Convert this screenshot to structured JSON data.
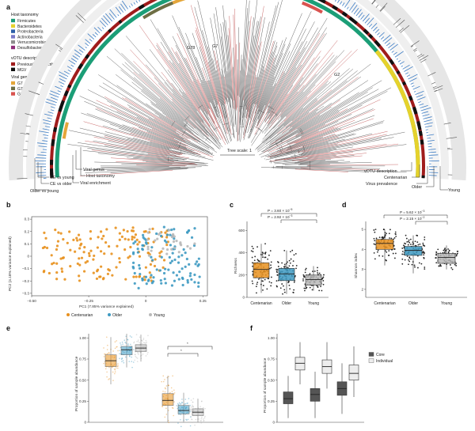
{
  "panel_labels": {
    "a": "a",
    "b": "b",
    "c": "c",
    "d": "d",
    "e": "e",
    "f": "f"
  },
  "colors": {
    "centenarian": "#E8911E",
    "older": "#3E9AC2",
    "young": "#B9B9B9",
    "firmicutes": "#1B9E77",
    "bacteroidetes": "#E6D22C",
    "proteobacteria": "#2C5FA8",
    "actinobacteria": "#7B7BC8",
    "verrucomicrobia": "#8E8E8E",
    "desulfobacterota": "#8F2E7A",
    "previously_undescribed": "#A01C1C",
    "mgv": "#111111",
    "g7": "#E4A63A",
    "g78": "#6E6E45",
    "g2": "#D9534F",
    "core": "#555555",
    "individual": "#EDEDED"
  },
  "panel_a": {
    "legend": {
      "host_taxonomy": {
        "title": "Host taxonomy",
        "items": [
          {
            "label": "Firmicutes",
            "color_key": "firmicutes"
          },
          {
            "label": "Bacteroidetes",
            "color_key": "bacteroidetes"
          },
          {
            "label": "Proteobacteria",
            "color_key": "proteobacteria"
          },
          {
            "label": "Actinobacteria",
            "color_key": "actinobacteria"
          },
          {
            "label": "Verrucomicrobia",
            "color_key": "verrucomicrobia"
          },
          {
            "label": "Desulfobacterota",
            "color_key": "desulfobacterota"
          }
        ]
      },
      "votu_description": {
        "title": "vOTU description",
        "items": [
          {
            "label": "Previously undescribed",
            "color_key": "previously_undescribed"
          },
          {
            "label": "MGV",
            "color_key": "mgv"
          }
        ]
      },
      "viral_genus": {
        "title": "Viral genus",
        "items": [
          {
            "label": "G7",
            "color_key": "g7"
          },
          {
            "label": "G78",
            "color_key": "g78"
          },
          {
            "label": "G2",
            "color_key": "g2"
          }
        ]
      }
    },
    "tree_labels": {
      "g78": "G78",
      "g7": "G7",
      "g2": "G2"
    },
    "tree_scale": "Tree scale: 1",
    "ring_labels_left": {
      "ce_vs_young": "CE vs young",
      "ce_vs_older": "CE vs older",
      "older_vs_young": "Older vs young",
      "viral_genus": "Viral genus",
      "host_taxonomy": "Host taxonomy",
      "viral_enrichment": "Viral enrichment"
    },
    "ring_labels_right": {
      "votu_description": "vOTU description",
      "centenarian": "Centenarian",
      "virus_prevalence": "Virus prevalence",
      "older": "Older",
      "young": "Young"
    }
  },
  "panel_b": {
    "chart_data": {
      "type": "scatter",
      "xlabel": "PC1 (7.85% variance explained)",
      "ylabel": "PC2 (4.18% variance explained)",
      "xlim": [
        -0.5,
        0.27
      ],
      "ylim": [
        -0.32,
        0.32
      ],
      "xticks": [
        -0.5,
        -0.25,
        0,
        0.25
      ],
      "xtick_labels": [
        "−0.50",
        "−0.25",
        "0",
        "0.25"
      ],
      "yticks": [
        -0.3,
        -0.2,
        -0.1,
        0,
        0.1,
        0.2,
        0.3
      ],
      "ytick_labels": [
        "−0.3",
        "−0.2",
        "−0.1",
        "0",
        "0.1",
        "0.2",
        "0.3"
      ],
      "legend_position": "bottom",
      "series": [
        {
          "name": "Centenarian",
          "color_key": "centenarian",
          "x_range": [
            -0.45,
            0.1
          ],
          "y_range": [
            -0.2,
            0.24
          ],
          "n": 150
        },
        {
          "name": "Older",
          "color_key": "older",
          "x_range": [
            -0.06,
            0.24
          ],
          "y_range": [
            -0.26,
            0.24
          ],
          "n": 110
        },
        {
          "name": "Young",
          "color_key": "young",
          "x_range": [
            0.0,
            0.22
          ],
          "y_range": [
            0.0,
            0.22
          ],
          "n": 30
        }
      ]
    }
  },
  "panel_c": {
    "chart_data": {
      "type": "box",
      "ylabel": "Richness",
      "ylim": [
        0,
        680
      ],
      "yticks": [
        0,
        200,
        400,
        600
      ],
      "ytick_labels": [
        "0",
        "200",
        "400",
        "600"
      ],
      "categories": [
        "Centenarian",
        "Older",
        "Young"
      ],
      "boxes": [
        {
          "q1": 175,
          "median": 250,
          "q3": 310,
          "min": 40,
          "max": 480
        },
        {
          "q1": 150,
          "median": 210,
          "q3": 260,
          "min": 30,
          "max": 420
        },
        {
          "q1": 110,
          "median": 160,
          "q3": 200,
          "min": 60,
          "max": 280
        }
      ],
      "annotations": [
        "P = 3.60 × 10",
        "−5",
        "P = 2.92 × 10",
        "−3"
      ]
    }
  },
  "panel_d": {
    "chart_data": {
      "type": "box",
      "ylabel": "Shannon index",
      "ylim": [
        1.6,
        5.4
      ],
      "yticks": [
        2,
        3,
        4,
        5
      ],
      "ytick_labels": [
        "2",
        "3",
        "4",
        "5"
      ],
      "categories": [
        "Centenarian",
        "Older",
        "Young"
      ],
      "boxes": [
        {
          "q1": 4.0,
          "median": 4.3,
          "q3": 4.5,
          "min": 3.2,
          "max": 5.0
        },
        {
          "q1": 3.7,
          "median": 3.95,
          "q3": 4.15,
          "min": 2.8,
          "max": 4.7
        },
        {
          "q1": 3.3,
          "median": 3.6,
          "q3": 3.8,
          "min": 3.0,
          "max": 4.2
        }
      ],
      "annotations": [
        "P = 5.62 × 10",
        "−3",
        "P = 2.15 × 10",
        "−2"
      ]
    }
  },
  "panel_e": {
    "chart_data": {
      "type": "box",
      "ylabel": "Proportion of sample abundance",
      "ylim": [
        0,
        1.05
      ],
      "yticks": [
        0,
        0.25,
        0.5,
        0.75,
        1.0
      ],
      "ytick_labels": [
        "0",
        "0.25",
        "0.50",
        "0.75",
        "1.00"
      ],
      "groups": 2,
      "boxes": [
        {
          "group": 0,
          "color_key": "centenarian",
          "q1": 0.66,
          "median": 0.73,
          "q3": 0.8
        },
        {
          "group": 0,
          "color_key": "older",
          "q1": 0.8,
          "median": 0.86,
          "q3": 0.9
        },
        {
          "group": 0,
          "color_key": "young",
          "q1": 0.84,
          "median": 0.88,
          "q3": 0.92
        },
        {
          "group": 1,
          "color_key": "centenarian",
          "q1": 0.2,
          "median": 0.26,
          "q3": 0.34
        },
        {
          "group": 1,
          "color_key": "older",
          "q1": 0.1,
          "median": 0.14,
          "q3": 0.2
        },
        {
          "group": 1,
          "color_key": "young",
          "q1": 0.08,
          "median": 0.12,
          "q3": 0.16
        }
      ],
      "annotations": [
        "*",
        "*"
      ]
    }
  },
  "panel_f": {
    "chart_data": {
      "type": "box",
      "ylabel": "Proportion of sample abundance",
      "ylim": [
        0,
        1.05
      ],
      "yticks": [
        0,
        0.25,
        0.5,
        0.75,
        1.0
      ],
      "ytick_labels": [
        "0",
        "0.25",
        "0.50",
        "0.75",
        "1.00"
      ],
      "legend": [
        {
          "label": "Core",
          "color_key": "core"
        },
        {
          "label": "Individual",
          "color_key": "individual"
        }
      ],
      "boxes": [
        {
          "group": 0,
          "color_key": "core",
          "q1": 0.22,
          "median": 0.28,
          "q3": 0.36,
          "min": 0.05,
          "max": 0.55
        },
        {
          "group": 0,
          "color_key": "individual",
          "q1": 0.62,
          "median": 0.7,
          "q3": 0.77,
          "min": 0.45,
          "max": 0.95
        },
        {
          "group": 1,
          "color_key": "core",
          "q1": 0.25,
          "median": 0.33,
          "q3": 0.4,
          "min": 0.05,
          "max": 0.6
        },
        {
          "group": 1,
          "color_key": "individual",
          "q1": 0.58,
          "median": 0.66,
          "q3": 0.74,
          "min": 0.4,
          "max": 0.95
        },
        {
          "group": 2,
          "color_key": "core",
          "q1": 0.32,
          "median": 0.4,
          "q3": 0.48,
          "min": 0.1,
          "max": 0.7
        },
        {
          "group": 2,
          "color_key": "individual",
          "q1": 0.5,
          "median": 0.58,
          "q3": 0.68,
          "min": 0.3,
          "max": 0.9
        }
      ]
    }
  },
  "legend_bottom": [
    {
      "label": "Centenarian",
      "color_key": "centenarian"
    },
    {
      "label": "Older",
      "color_key": "older"
    },
    {
      "label": "Young",
      "color_key": "young"
    }
  ]
}
